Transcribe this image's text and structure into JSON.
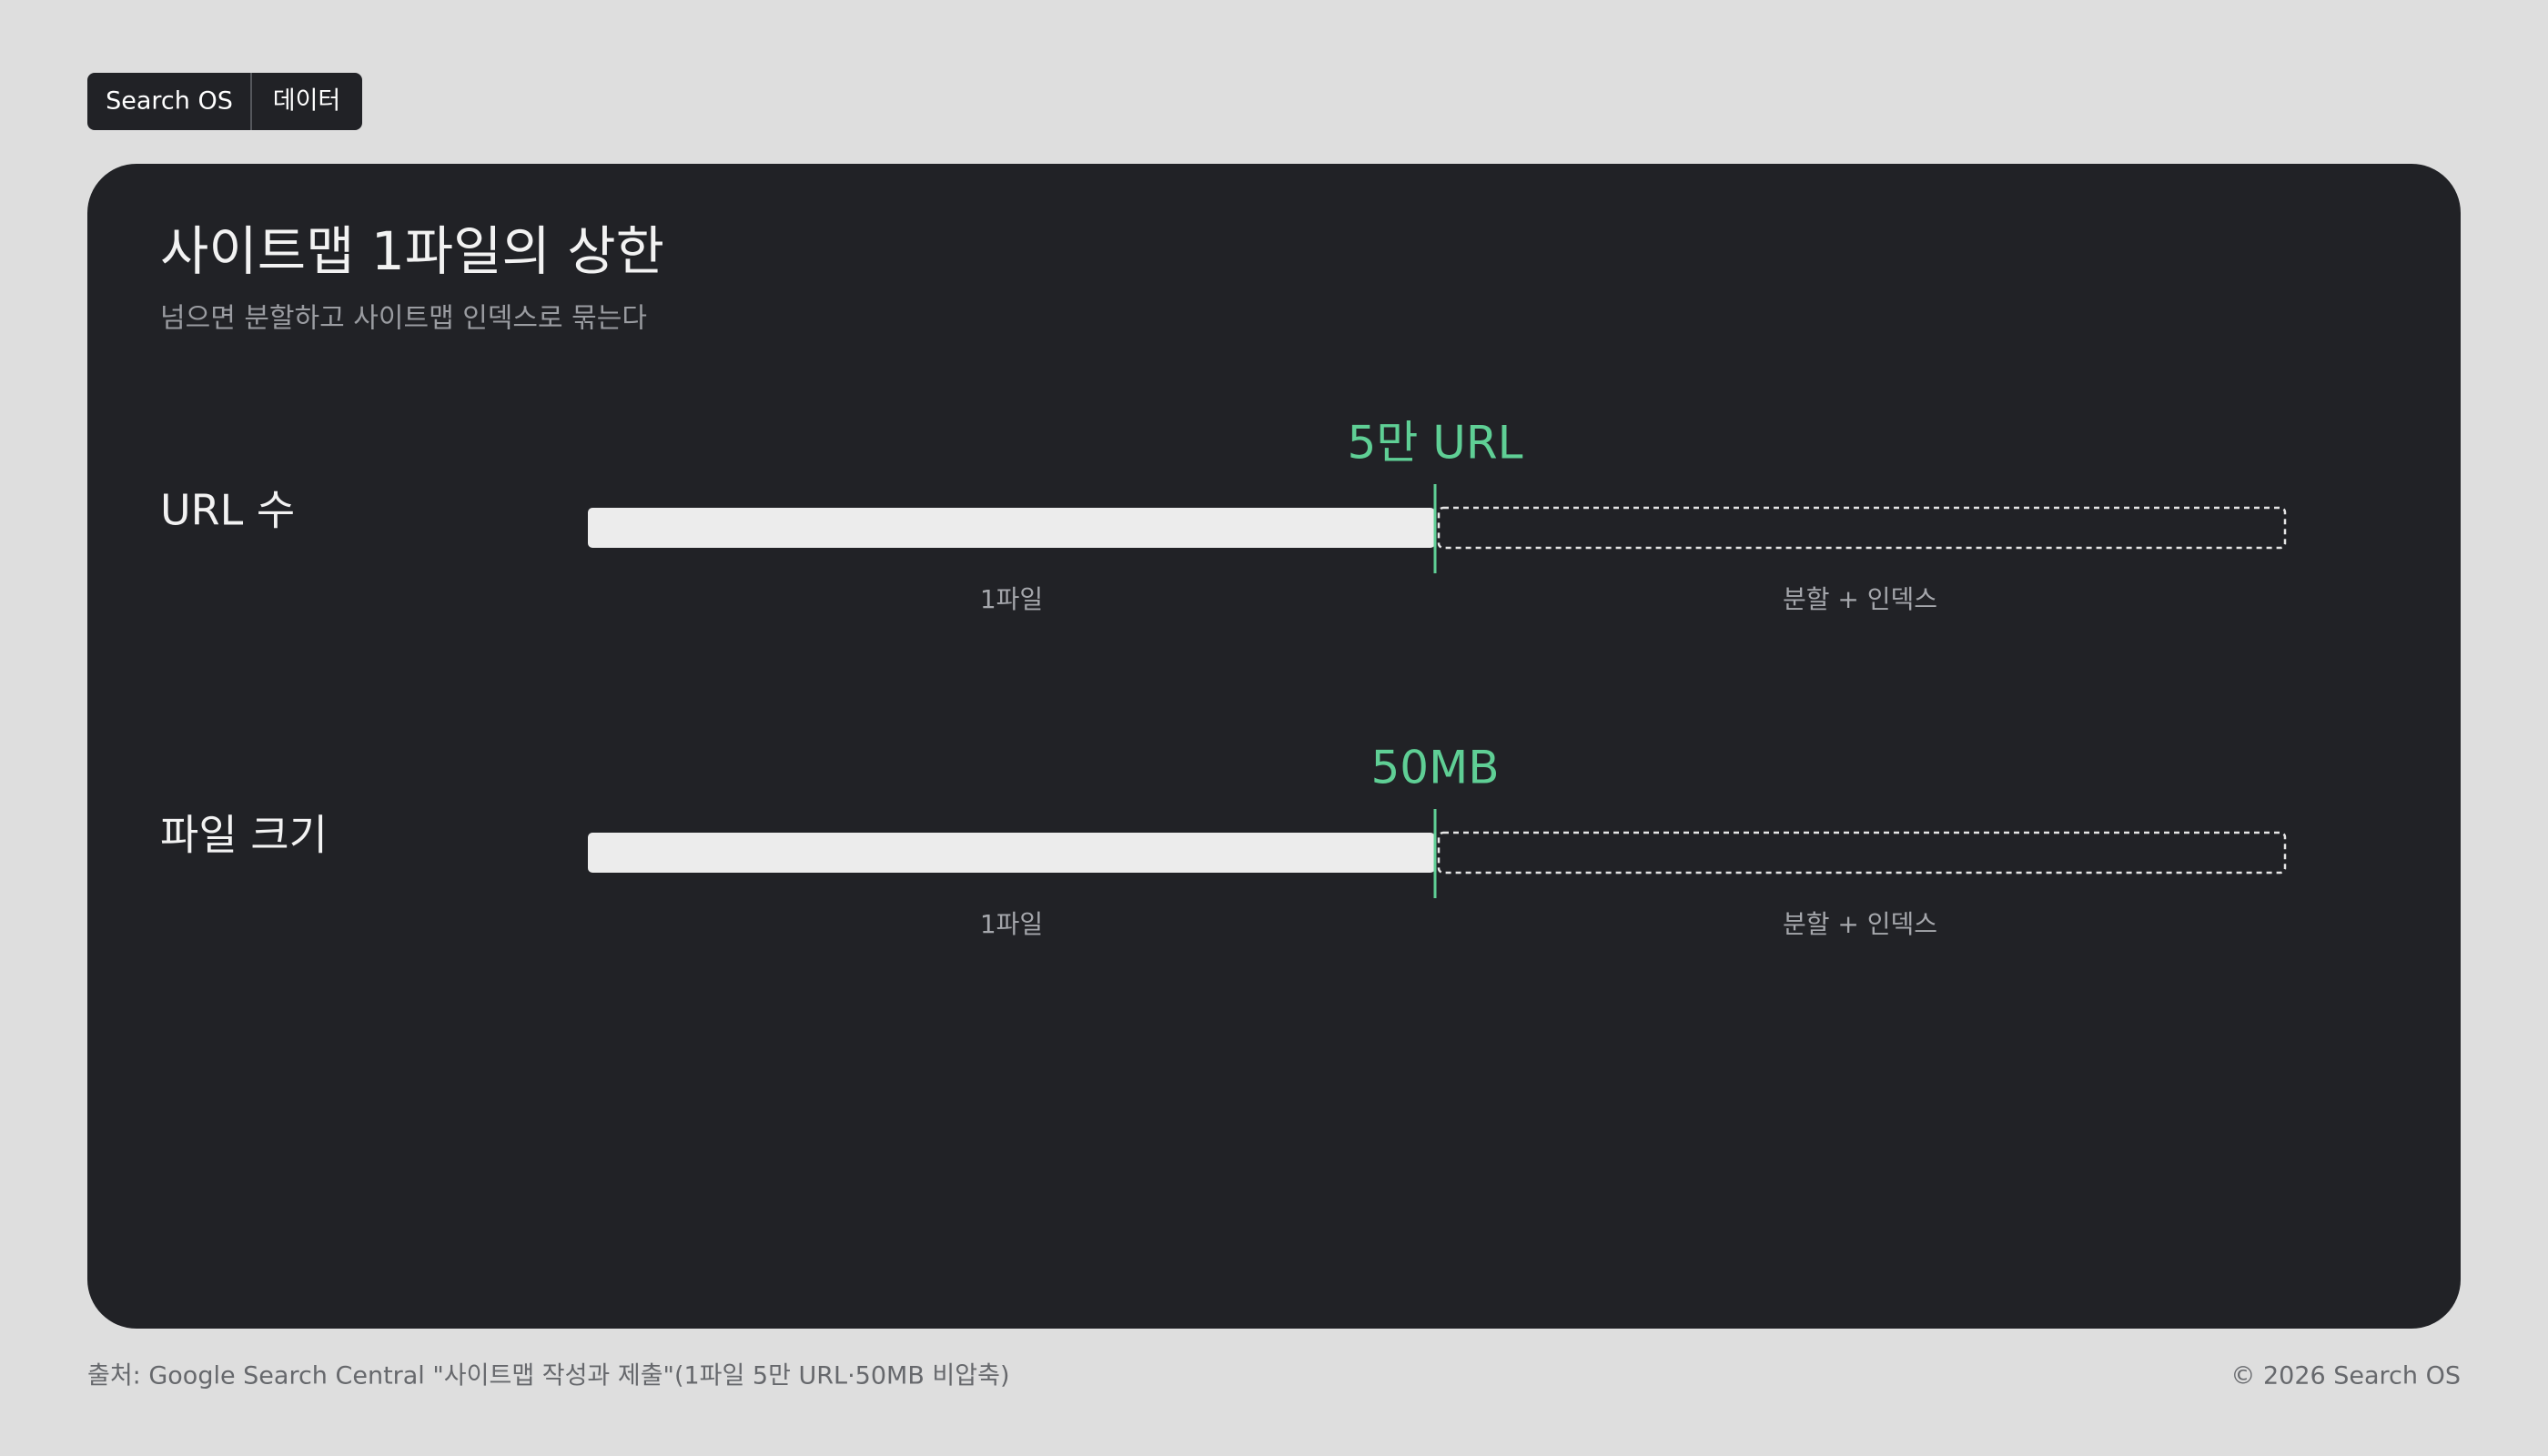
{
  "breadcrumb": [
    "Search OS",
    "데이터"
  ],
  "title": "사이트맵 1파일의 상한",
  "subtitle": "넘으면 분할하고 사이트맵 인덱스로 묶는다",
  "rows": [
    {
      "label": "URL 수",
      "limit": "5만 URL",
      "inside": "1파일",
      "outside": "분할 + 인덱스"
    },
    {
      "label": "파일 크기",
      "limit": "50MB",
      "inside": "1파일",
      "outside": "분할 + 인덱스"
    }
  ],
  "footer": {
    "source": "출처: Google Search Central \"사이트맵 작성과 제출\"(1파일 5만 URL·50MB 비압축)",
    "copyright": "© 2026 Search OS"
  }
}
